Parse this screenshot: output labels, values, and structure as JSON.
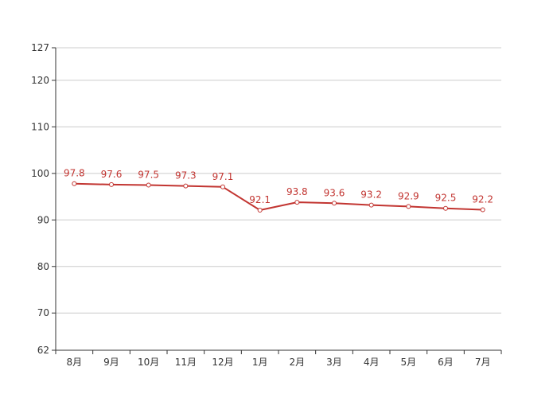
{
  "chart_data": {
    "type": "line",
    "categories": [
      "8月",
      "9月",
      "10月",
      "11月",
      "12月",
      "1月",
      "2月",
      "3月",
      "4月",
      "5月",
      "6月",
      "7月"
    ],
    "series": [
      {
        "values": [
          97.8,
          97.6,
          97.5,
          97.3,
          97.1,
          92.1,
          93.8,
          93.6,
          93.2,
          92.9,
          92.5,
          92.2
        ],
        "color": "#c23531"
      }
    ],
    "yticks": [
      62,
      70,
      80,
      90,
      100,
      110,
      120,
      127
    ],
    "ylim": [
      62,
      127
    ],
    "grid": true,
    "data_labels": true
  }
}
